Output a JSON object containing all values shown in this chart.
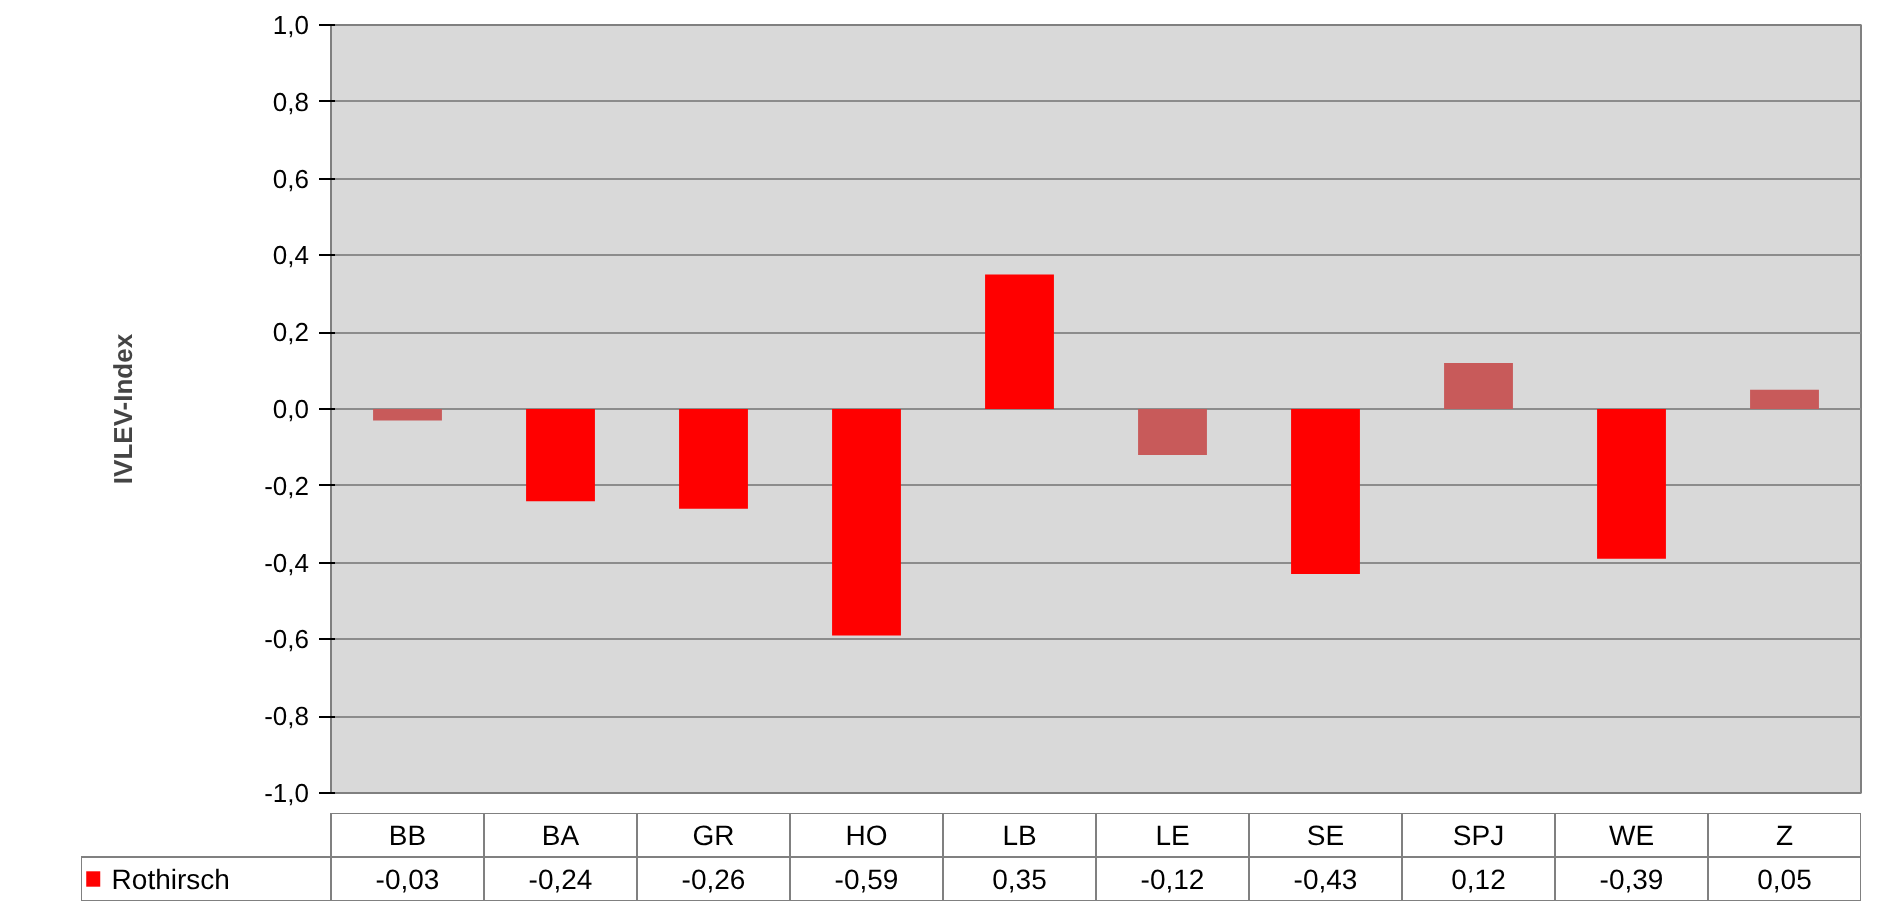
{
  "chart_data": {
    "type": "bar",
    "ylabel": "IVLEV-Index",
    "categories": [
      "BB",
      "BA",
      "GR",
      "HO",
      "LB",
      "LE",
      "SE",
      "SPJ",
      "WE",
      "Z"
    ],
    "series": [
      {
        "name": "Rothirsch",
        "color": "#ff0000",
        "colors": [
          "#c85a5a",
          "#ff0000",
          "#ff0000",
          "#ff0000",
          "#ff0000",
          "#c85a5a",
          "#ff0000",
          "#c85a5a",
          "#ff0000",
          "#c85a5a"
        ],
        "values": [
          -0.03,
          -0.24,
          -0.26,
          -0.59,
          0.35,
          -0.12,
          -0.43,
          0.12,
          -0.39,
          0.05
        ],
        "value_labels": [
          "-0,03",
          "-0,24",
          "-0,26",
          "-0,59",
          "0,35",
          "-0,12",
          "-0,43",
          "0,12",
          "-0,39",
          "0,05"
        ]
      }
    ],
    "ylim": [
      -1.0,
      1.0
    ],
    "yticks": [
      {
        "value": -1.0,
        "label": "-1,0"
      },
      {
        "value": -0.8,
        "label": "-0,8"
      },
      {
        "value": -0.6,
        "label": "-0,6"
      },
      {
        "value": -0.4,
        "label": "-0,4"
      },
      {
        "value": -0.2,
        "label": "-0,2"
      },
      {
        "value": 0.0,
        "label": "0,0"
      },
      {
        "value": 0.2,
        "label": "0,2"
      },
      {
        "value": 0.4,
        "label": "0,4"
      },
      {
        "value": 0.6,
        "label": "0,6"
      },
      {
        "value": 0.8,
        "label": "0,8"
      },
      {
        "value": 1.0,
        "label": "1,0"
      }
    ],
    "grid": "y",
    "legend": "bottom"
  }
}
